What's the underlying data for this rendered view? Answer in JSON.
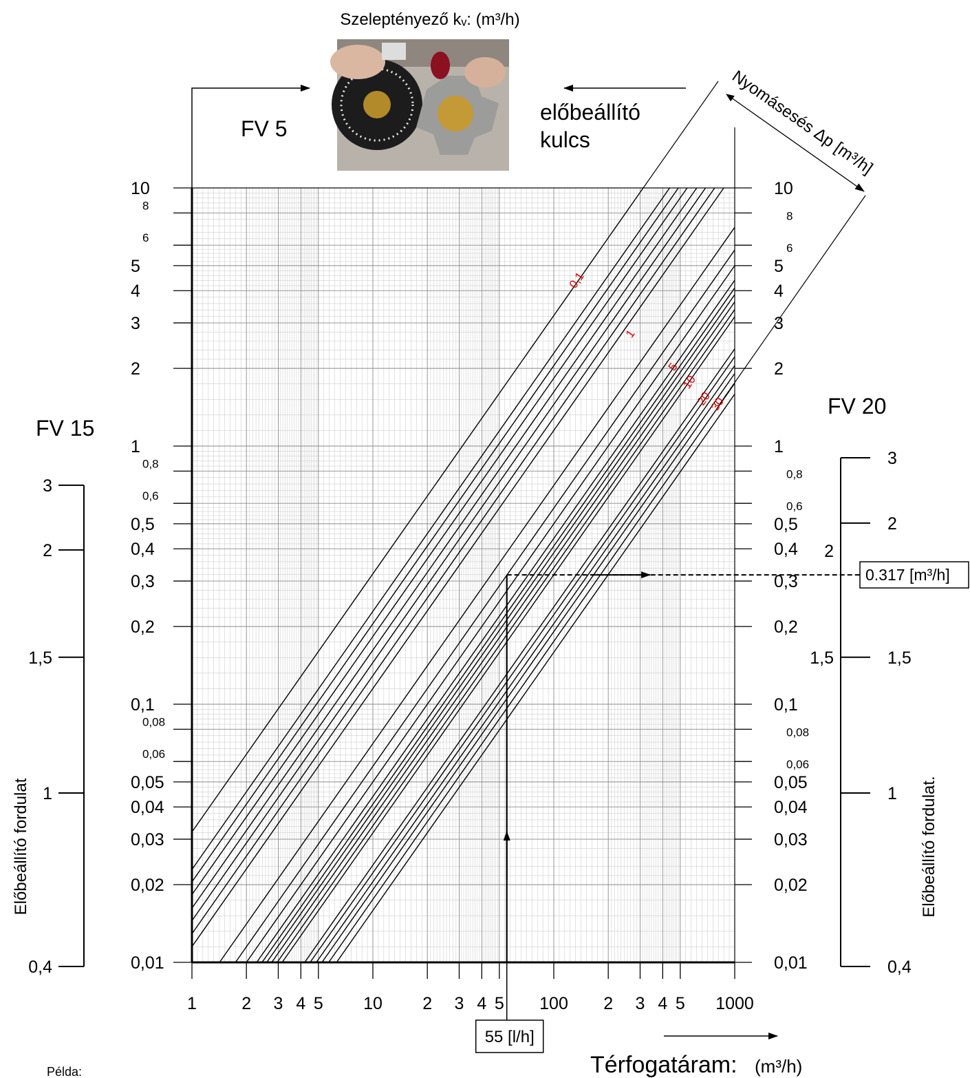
{
  "chart_data": {
    "type": "line",
    "title": "Szeleptényező kᵥ: (m³/h)",
    "fv5_label": "FV 5",
    "key_label": [
      "előbeállító",
      "kulcs"
    ],
    "delta_p_label": "Nyomásesés Δp [m³/h]",
    "x_label": "Térfogatáram:",
    "x_unit": "(m³/h)",
    "note": "Példa:",
    "log_x": true,
    "log_y": true,
    "grid": true,
    "color": "#000000",
    "xlim": [
      1,
      1000
    ],
    "ylim": [
      0.01,
      10
    ],
    "xticks": [
      1,
      2,
      3,
      4,
      5,
      10,
      {
        "value": 20,
        "label": "2"
      },
      {
        "value": 30,
        "label": "3"
      },
      {
        "value": 40,
        "label": "4"
      },
      {
        "value": 50,
        "label": "5"
      },
      100,
      {
        "value": 200,
        "label": "2"
      },
      {
        "value": 300,
        "label": "3"
      },
      {
        "value": 400,
        "label": "4"
      },
      {
        "value": 500,
        "label": "5"
      },
      1000
    ],
    "yticks": [
      10,
      8,
      6,
      5,
      4,
      3,
      2,
      1,
      {
        "value": 0.8,
        "label": "0,8"
      },
      {
        "value": 0.6,
        "label": "0,6"
      },
      {
        "value": 0.5,
        "label": "0,5"
      },
      {
        "value": 0.4,
        "label": "0,4"
      },
      {
        "value": 0.3,
        "label": "0,3"
      },
      {
        "value": 0.2,
        "label": "0,2"
      },
      {
        "value": 0.1,
        "label": "0,1"
      },
      {
        "value": 0.08,
        "label": "0,08"
      },
      {
        "value": 0.06,
        "label": "0,06"
      },
      {
        "value": 0.05,
        "label": "0,05"
      },
      {
        "value": 0.04,
        "label": "0,04"
      },
      {
        "value": 0.03,
        "label": "0,03"
      },
      {
        "value": 0.02,
        "label": "0,02"
      },
      {
        "value": 0.01,
        "label": "0,01"
      }
    ],
    "series": [
      {
        "x": [
          1,
          312
        ],
        "values": [
          0.032,
          10
        ]
      },
      {
        "x": [
          1,
          437
        ],
        "values": [
          0.0229,
          10
        ]
      },
      {
        "x": [
          1,
          488
        ],
        "values": [
          0.0205,
          10
        ]
      },
      {
        "x": [
          1,
          546
        ],
        "values": [
          0.0183,
          10
        ]
      },
      {
        "x": [
          1,
          617
        ],
        "values": [
          0.0162,
          10
        ]
      },
      {
        "x": [
          1,
          690
        ],
        "values": [
          0.0145,
          10
        ]
      },
      {
        "x": [
          1,
          775
        ],
        "values": [
          0.0129,
          10
        ]
      },
      {
        "x": [
          1,
          870
        ],
        "values": [
          0.0115,
          10
        ]
      },
      {
        "x": [
          1.42,
          1000
        ],
        "values": [
          0.01,
          7.04
        ]
      },
      {
        "x": [
          1.74,
          1000
        ],
        "values": [
          0.01,
          5.75
        ]
      },
      {
        "x": [
          2,
          1000
        ],
        "values": [
          0.01,
          5
        ]
      },
      {
        "x": [
          2.28,
          1000
        ],
        "values": [
          0.01,
          4.39
        ]
      },
      {
        "x": [
          2.44,
          1000
        ],
        "values": [
          0.01,
          4.1
        ]
      },
      {
        "x": [
          2.59,
          1000
        ],
        "values": [
          0.01,
          3.86
        ]
      },
      {
        "x": [
          2.76,
          1000
        ],
        "values": [
          0.01,
          3.62
        ]
      },
      {
        "x": [
          2.96,
          1000
        ],
        "values": [
          0.01,
          3.38
        ]
      },
      {
        "x": [
          3.15,
          1000
        ],
        "values": [
          0.01,
          3.17
        ]
      },
      {
        "x": [
          4.2,
          1000
        ],
        "values": [
          0.01,
          2.38
        ]
      },
      {
        "x": [
          4.5,
          1000
        ],
        "values": [
          0.01,
          2.22
        ]
      },
      {
        "x": [
          4.87,
          1000
        ],
        "values": [
          0.01,
          2.05
        ]
      },
      {
        "x": [
          5.23,
          1000
        ],
        "values": [
          0.01,
          1.91
        ]
      },
      {
        "x": [
          5.7,
          1000
        ],
        "values": [
          0.01,
          1.75
        ]
      },
      {
        "x": [
          6.3,
          1000
        ],
        "values": [
          0.01,
          1.59
        ]
      }
    ],
    "line_labels": [
      "0,1",
      "1",
      "5",
      "10",
      "20",
      "30"
    ],
    "line_label_color": "#e00000",
    "example": {
      "x": 55,
      "y": 0.317,
      "x_label": "55 [l/h]",
      "y_label": "0.317 [m³/h]"
    },
    "fv15": {
      "title": "FV 15",
      "axis_label": "Előbeállító fordulat",
      "ticks": [
        {
          "value": 3,
          "label": "3",
          "at": 0.705
        },
        {
          "value": 2,
          "label": "2",
          "at": 0.396
        },
        {
          "value": 1.5,
          "label": "1,5",
          "at": 0.152
        },
        {
          "value": 1,
          "label": "1",
          "at": 0.0453
        },
        {
          "value": 0.4,
          "label": "0,4",
          "at": 0.00964
        }
      ]
    },
    "fv20": {
      "title": "FV 20",
      "axis_label": "Előbeállító fordulat.",
      "ticks": [
        {
          "value": 3,
          "label": "3",
          "at": 0.901
        },
        {
          "value": 2,
          "label": "2",
          "at": 0.503
        },
        {
          "value": 1.5,
          "label": "1,5",
          "at": 0.152
        },
        {
          "value": 1,
          "label": "1",
          "at": 0.0453
        },
        {
          "value": 0.4,
          "label": "0,4",
          "at": 0.00964
        }
      ],
      "left_ticks": [
        {
          "value": 2,
          "label": "2",
          "at": 0.393
        },
        {
          "value": 1.5,
          "label": "1,5",
          "at": 0.152
        }
      ]
    }
  }
}
